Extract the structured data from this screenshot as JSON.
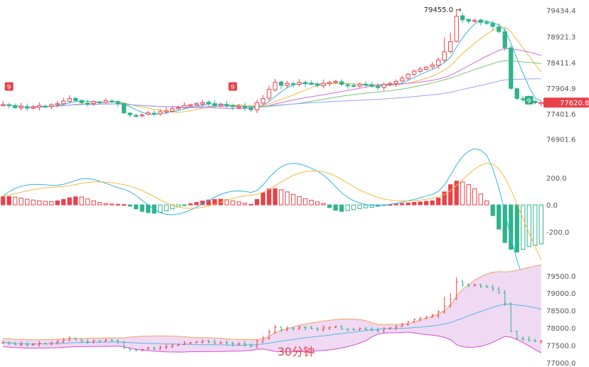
{
  "colors": {
    "up": "#e8414a",
    "down": "#2fb38a",
    "ma5": "#30b5e8",
    "ma10": "#f5b942",
    "ma20": "#d36bd8",
    "ma30": "#74c77a",
    "ma60": "#9aa3ff",
    "boll_upper": "#f5a25d",
    "boll_mid": "#58b8e8",
    "boll_lower": "#d64fd3",
    "boll_fill": "#efd9f3",
    "dif": "#30b5e8",
    "dea": "#f5b942",
    "last_price_bg": "#e8414a"
  },
  "chart_data": [
    {
      "type": "candlestick",
      "panel": "price",
      "y_axis_ticks": [
        "79434.4",
        "78921.3",
        "78411.4",
        "77904.9",
        "77401.6",
        "76901.6"
      ],
      "ylim": [
        76700,
        79500
      ],
      "high_annotation": "79455.0",
      "last_price": "77620.8",
      "td_markers": [
        "9",
        "9",
        "9"
      ],
      "closes": [
        77580,
        77560,
        77520,
        77540,
        77510,
        77530,
        77560,
        77540,
        77580,
        77600,
        77650,
        77700,
        77660,
        77620,
        77600,
        77640,
        77620,
        77660,
        77640,
        77600,
        77420,
        77380,
        77360,
        77380,
        77420,
        77400,
        77440,
        77460,
        77500,
        77520,
        77560,
        77580,
        77600,
        77620,
        77600,
        77560,
        77580,
        77560,
        77540,
        77540,
        77520,
        77480,
        77620,
        77700,
        77880,
        78020,
        77960,
        78000,
        77980,
        78020,
        78000,
        77980,
        77960,
        78000,
        78020,
        78040,
        77980,
        77960,
        77940,
        77980,
        77960,
        77940,
        77920,
        77980,
        78000,
        78040,
        78100,
        78180,
        78240,
        78280,
        78320,
        78360,
        78460,
        78620,
        78820,
        79320,
        79250,
        79220,
        79240,
        79200,
        79180,
        79120,
        79020,
        78700,
        77900,
        77700,
        77680,
        77640,
        77620,
        77620
      ],
      "bars_shown": 90,
      "ma_series": [
        "MA5",
        "MA10",
        "MA20",
        "MA30",
        "MA60"
      ]
    },
    {
      "type": "bar",
      "panel": "macd",
      "y_axis_ticks": [
        "200.0",
        "0.0",
        "-200.0"
      ],
      "ylim": [
        -380,
        280
      ],
      "histogram": [
        60,
        62,
        58,
        50,
        42,
        36,
        30,
        26,
        24,
        30,
        40,
        52,
        60,
        58,
        44,
        30,
        18,
        10,
        6,
        4,
        2,
        -10,
        -30,
        -48,
        -58,
        -62,
        -56,
        -44,
        -30,
        -16,
        -4,
        8,
        18,
        28,
        36,
        40,
        42,
        38,
        30,
        22,
        12,
        4,
        40,
        90,
        118,
        120,
        112,
        96,
        78,
        62,
        46,
        34,
        22,
        10,
        -20,
        -40,
        -48,
        -42,
        -36,
        -28,
        -22,
        -18,
        -10,
        -4,
        2,
        6,
        10,
        14,
        18,
        22,
        26,
        30,
        50,
        96,
        150,
        176,
        170,
        150,
        120,
        80,
        30,
        -80,
        -180,
        -280,
        -330,
        -350,
        -330,
        -310,
        -300,
        -290
      ],
      "dif_end": -80,
      "dea_end": 30
    },
    {
      "type": "candlestick",
      "panel": "boll",
      "y_axis_ticks": [
        "79500.0",
        "79000.0",
        "78500.0",
        "78000.0",
        "77500.0",
        "77000.0"
      ],
      "ylim": [
        77000,
        79700
      ],
      "indicator": "BOLL"
    }
  ],
  "timeframe_label": "30分钟"
}
